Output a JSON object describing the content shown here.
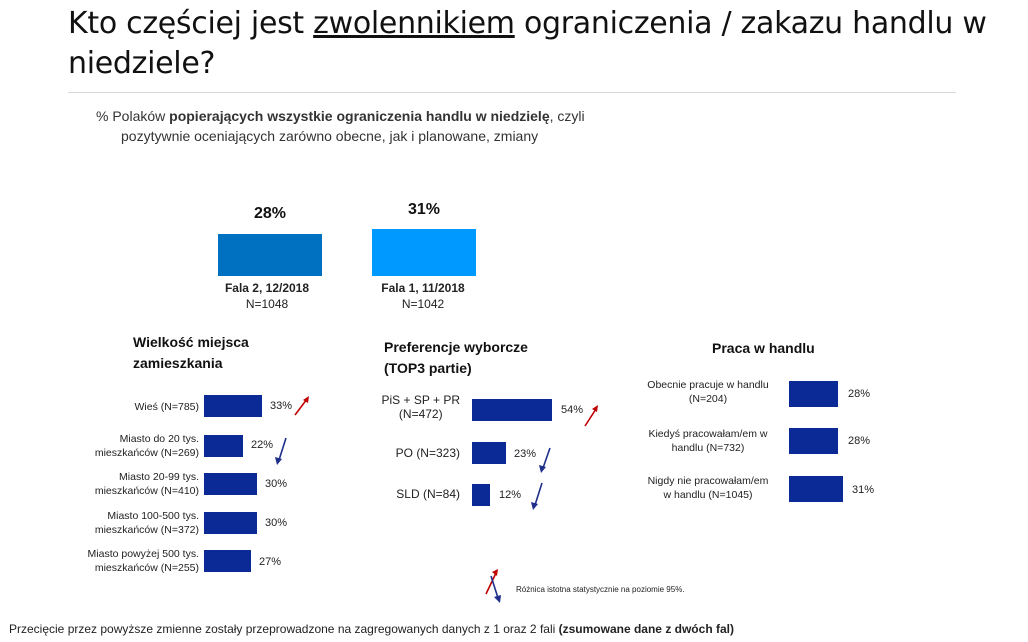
{
  "title": {
    "part1": "Kto częściej jest ",
    "emphasis": "zwolennikiem",
    "part2": " ograniczenia / zakazu handlu w niedziele?"
  },
  "subtitle": {
    "prefix": "% Polaków ",
    "bold": "popierających wszystkie ograniczenia handlu w niedzielę",
    "suffix": ", czyli",
    "line2": "pozytywnie oceniających zarówno obecne, jak i planowane, zmiany"
  },
  "colors": {
    "fala2_bar": "#0070c0",
    "fala1_bar": "#0099ff",
    "segment_bar": "#0b2a96",
    "arrow_up": "#c00000",
    "arrow_down": "#1f2f8a"
  },
  "chart_data": [
    {
      "type": "bar",
      "categories": [
        "Fala 2, 12/2018",
        "Fala 1, 11/2018"
      ],
      "sample_sizes": [
        "N=1048",
        "N=1042"
      ],
      "values": [
        28,
        31
      ],
      "value_labels": [
        "28%",
        "31%"
      ]
    },
    {
      "type": "bar",
      "orientation": "horizontal",
      "title": "Wielkość miejsca zamieszkania",
      "categories": [
        "Wieś (N=785)",
        "Miasto do 20 tys. mieszkańców (N=269)",
        "Miasto 20-99 tys. mieszkańców (N=410)",
        "Miasto 100-500 tys. mieszkańców (N=372)",
        "Miasto powyżej 500 tys. mieszkańców (N=255)"
      ],
      "values": [
        33,
        22,
        30,
        30,
        27
      ],
      "value_labels": [
        "33%",
        "22%",
        "30%",
        "30%",
        "27%"
      ],
      "significance": [
        "up",
        "down",
        "",
        "",
        ""
      ]
    },
    {
      "type": "bar",
      "orientation": "horizontal",
      "title": "Preferencje wyborcze (TOP3 partie)",
      "categories": [
        "PiS + SP + PR (N=472)",
        "PO (N=323)",
        "SLD (N=84)"
      ],
      "values": [
        54,
        23,
        12
      ],
      "value_labels": [
        "54%",
        "23%",
        "12%"
      ],
      "significance": [
        "up",
        "down",
        "down"
      ]
    },
    {
      "type": "bar",
      "orientation": "horizontal",
      "title": "Praca w handlu",
      "categories": [
        "Obecnie pracuje w handlu (N=204)",
        "Kiedyś pracowałam/em w handlu (N=732)",
        "Nigdy nie pracowałam/em w handlu (N=1045)"
      ],
      "values": [
        28,
        28,
        31
      ],
      "value_labels": [
        "28%",
        "28%",
        "31%"
      ],
      "significance": [
        "",
        "",
        ""
      ]
    }
  ],
  "wave": {
    "fala2": {
      "pct": "28%",
      "label": "Fala 2, 12/2018",
      "n": "N=1048"
    },
    "fala1": {
      "pct": "31%",
      "label": "Fala 1, 11/2018",
      "n": "N=1042"
    }
  },
  "size": {
    "title1": "Wielkość miejsca",
    "title2": "zamieszkania",
    "rows": [
      {
        "l1": "Wieś (N=785)",
        "l2": "",
        "val": "33%"
      },
      {
        "l1": "Miasto do 20 tys.",
        "l2": "mieszkańców (N=269)",
        "val": "22%"
      },
      {
        "l1": "Miasto 20-99 tys.",
        "l2": "mieszkańców (N=410)",
        "val": "30%"
      },
      {
        "l1": "Miasto 100-500 tys.",
        "l2": "mieszkańców (N=372)",
        "val": "30%"
      },
      {
        "l1": "Miasto powyżej 500 tys.",
        "l2": "mieszkańców (N=255)",
        "val": "27%"
      }
    ]
  },
  "party": {
    "title1": "Preferencje wyborcze",
    "title2": "(TOP3 partie)",
    "rows": [
      {
        "l1": "PiS + SP + PR",
        "l2": "(N=472)",
        "val": "54%"
      },
      {
        "l1": "PO (N=323)",
        "l2": "",
        "val": "23%"
      },
      {
        "l1": "SLD (N=84)",
        "l2": "",
        "val": "12%"
      }
    ]
  },
  "work": {
    "title": "Praca w handlu",
    "rows": [
      {
        "l1": "Obecnie pracuje w handlu",
        "l2": "(N=204)",
        "val": "28%"
      },
      {
        "l1": "Kiedyś pracowałam/em w",
        "l2": "handlu (N=732)",
        "val": "28%"
      },
      {
        "l1": "Nigdy nie pracowałam/em",
        "l2": "w handlu (N=1045)",
        "val": "31%"
      }
    ]
  },
  "legend": {
    "text": "Różnica  istotna statystycznie na poziomie 95%."
  },
  "footnote": {
    "text": "Przecięcie przez powyższe zmienne zostały przeprowadzone na zagregowanych danych z 1 oraz 2 fali ",
    "bold": "(zsumowane dane z dwóch fal)"
  }
}
